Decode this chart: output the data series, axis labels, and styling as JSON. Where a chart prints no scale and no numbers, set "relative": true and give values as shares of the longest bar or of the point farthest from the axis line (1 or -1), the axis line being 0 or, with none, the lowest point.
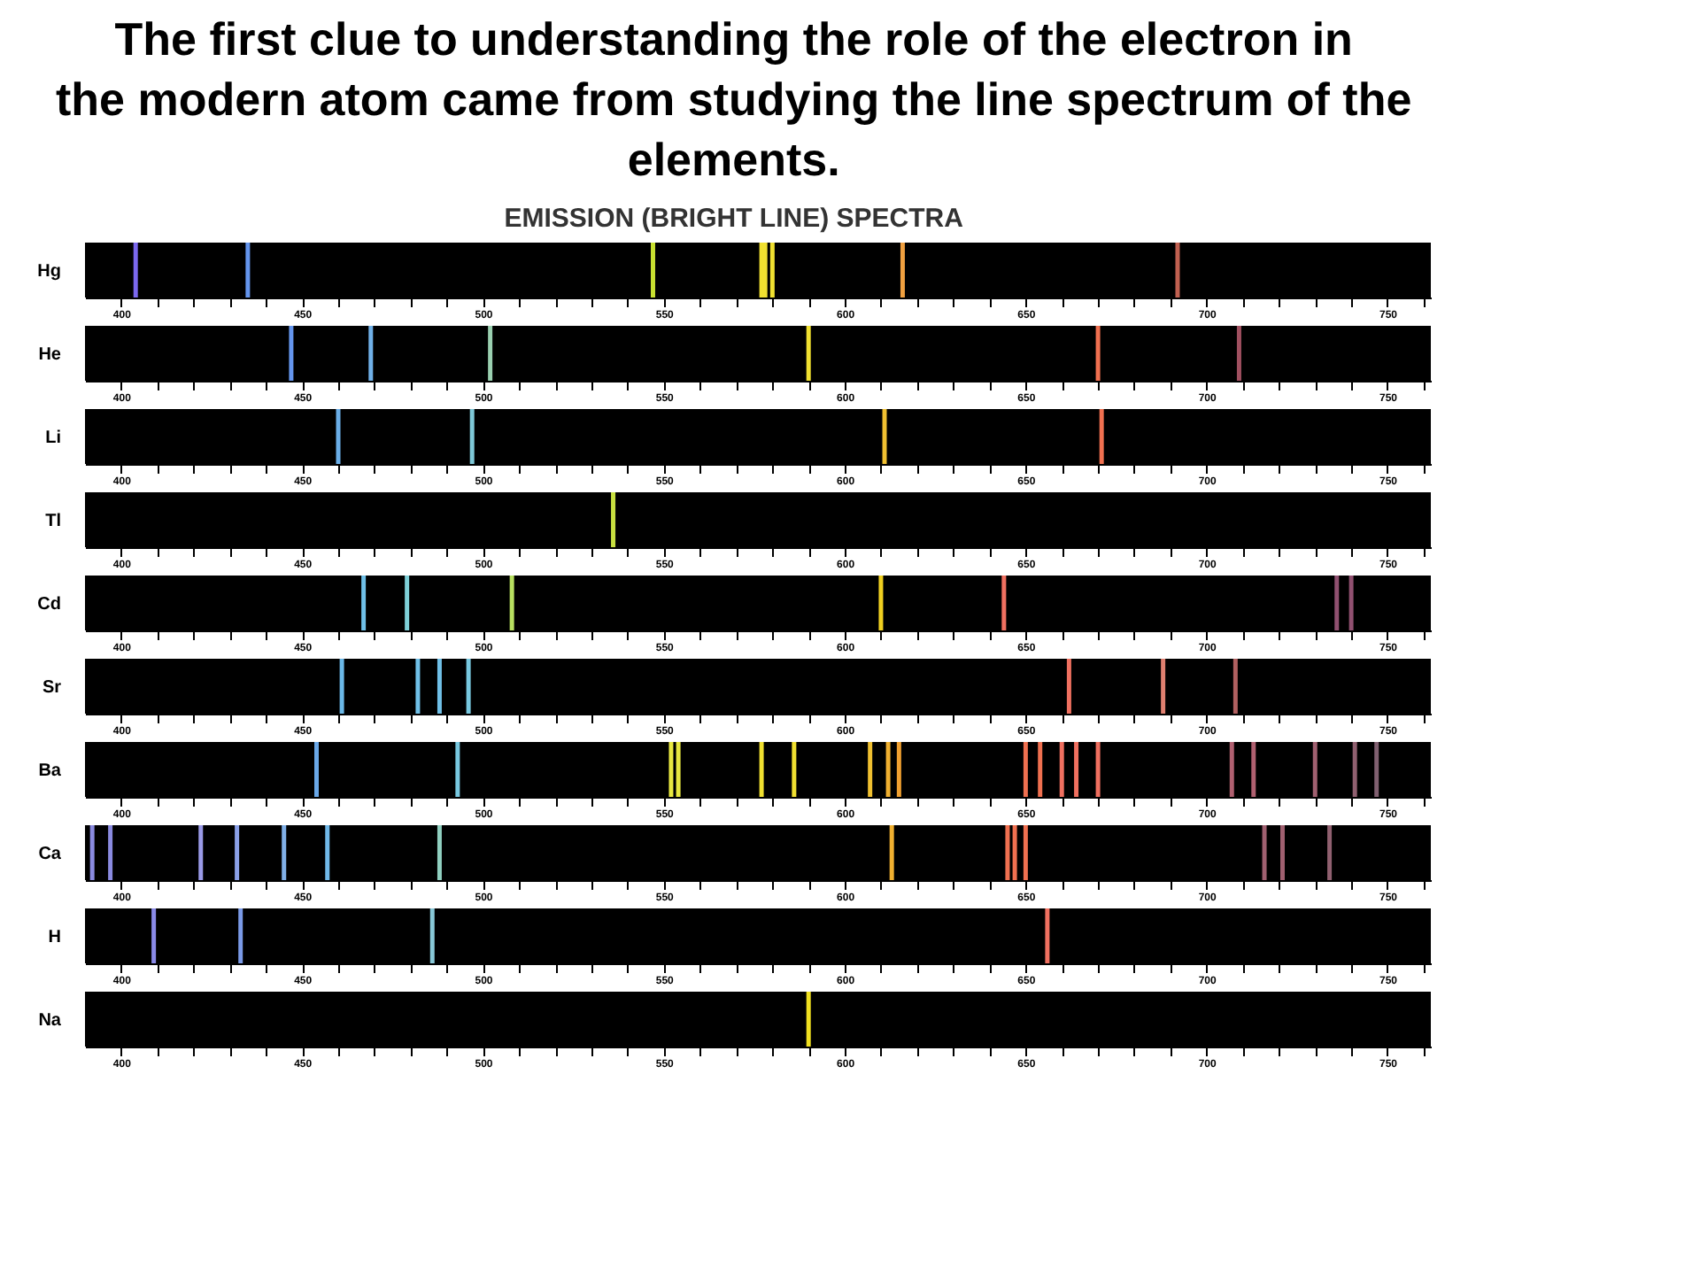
{
  "chart_data": [
    {
      "type": "bar",
      "title": "The first clue to understanding the role of the electron in the modern atom came from studying the line spectrum of the elements.",
      "subtitle": "EMISSION (BRIGHT LINE) SPECTRA",
      "ylabel": "Hg",
      "relative": true,
      "xlim": [
        390,
        762
      ],
      "xticks": [
        400,
        {
          "value": 410,
          "label": null
        },
        {
          "value": 420,
          "label": null
        },
        {
          "value": 430,
          "label": null
        },
        {
          "value": 440,
          "label": null
        },
        450,
        {
          "value": 460,
          "label": null
        },
        {
          "value": 470,
          "label": null
        },
        {
          "value": 480,
          "label": null
        },
        {
          "value": 490,
          "label": null
        },
        500,
        {
          "value": 510,
          "label": null
        },
        {
          "value": 520,
          "label": null
        },
        {
          "value": 530,
          "label": null
        },
        {
          "value": 540,
          "label": null
        },
        550,
        {
          "value": 560,
          "label": null
        },
        {
          "value": 570,
          "label": null
        },
        {
          "value": 580,
          "label": null
        },
        {
          "value": 590,
          "label": null
        },
        600,
        {
          "value": 610,
          "label": null
        },
        {
          "value": 620,
          "label": null
        },
        {
          "value": 630,
          "label": null
        },
        {
          "value": 640,
          "label": null
        },
        650,
        {
          "value": 660,
          "label": null
        },
        {
          "value": 670,
          "label": null
        },
        {
          "value": 680,
          "label": null
        },
        {
          "value": 690,
          "label": null
        },
        700,
        {
          "value": 710,
          "label": null
        },
        {
          "value": 720,
          "label": null
        },
        {
          "value": 730,
          "label": null
        },
        {
          "value": 740,
          "label": null
        },
        750,
        {
          "value": 760,
          "label": null
        }
      ],
      "x": [
        404,
        435,
        547,
        577,
        578,
        580,
        616,
        692
      ],
      "values": [
        1,
        1,
        1,
        1,
        1,
        1,
        1,
        1
      ],
      "colors": [
        "#7b68ee",
        "#6495ed",
        "#c8e030",
        "#f0e030",
        "#f0e030",
        "#f0e030",
        "#f0a040",
        "#c06050"
      ],
      "grid": false
    },
    {
      "type": "bar",
      "ylabel": "He",
      "relative": true,
      "xlim": [
        390,
        762
      ],
      "xticks": [
        400,
        {
          "value": 410,
          "label": null
        },
        {
          "value": 420,
          "label": null
        },
        {
          "value": 430,
          "label": null
        },
        {
          "value": 440,
          "label": null
        },
        450,
        {
          "value": 460,
          "label": null
        },
        {
          "value": 470,
          "label": null
        },
        {
          "value": 480,
          "label": null
        },
        {
          "value": 490,
          "label": null
        },
        500,
        {
          "value": 510,
          "label": null
        },
        {
          "value": 520,
          "label": null
        },
        {
          "value": 530,
          "label": null
        },
        {
          "value": 540,
          "label": null
        },
        550,
        {
          "value": 560,
          "label": null
        },
        {
          "value": 570,
          "label": null
        },
        {
          "value": 580,
          "label": null
        },
        {
          "value": 590,
          "label": null
        },
        600,
        {
          "value": 610,
          "label": null
        },
        {
          "value": 620,
          "label": null
        },
        {
          "value": 630,
          "label": null
        },
        {
          "value": 640,
          "label": null
        },
        650,
        {
          "value": 660,
          "label": null
        },
        {
          "value": 670,
          "label": null
        },
        {
          "value": 680,
          "label": null
        },
        {
          "value": 690,
          "label": null
        },
        700,
        {
          "value": 710,
          "label": null
        },
        {
          "value": 720,
          "label": null
        },
        {
          "value": 730,
          "label": null
        },
        {
          "value": 740,
          "label": null
        },
        750,
        {
          "value": 760,
          "label": null
        }
      ],
      "x": [
        447,
        469,
        502,
        590,
        670,
        709
      ],
      "values": [
        1,
        1,
        1,
        1,
        1,
        1
      ],
      "colors": [
        "#6495ed",
        "#6fb0e8",
        "#9ad0b0",
        "#f0e030",
        "#f07050",
        "#a05060"
      ],
      "grid": false
    },
    {
      "type": "bar",
      "ylabel": "Li",
      "relative": true,
      "xlim": [
        390,
        762
      ],
      "xticks": [
        400,
        {
          "value": 410,
          "label": null
        },
        {
          "value": 420,
          "label": null
        },
        {
          "value": 430,
          "label": null
        },
        {
          "value": 440,
          "label": null
        },
        450,
        {
          "value": 460,
          "label": null
        },
        {
          "value": 470,
          "label": null
        },
        {
          "value": 480,
          "label": null
        },
        {
          "value": 490,
          "label": null
        },
        500,
        {
          "value": 510,
          "label": null
        },
        {
          "value": 520,
          "label": null
        },
        {
          "value": 530,
          "label": null
        },
        {
          "value": 540,
          "label": null
        },
        550,
        {
          "value": 560,
          "label": null
        },
        {
          "value": 570,
          "label": null
        },
        {
          "value": 580,
          "label": null
        },
        {
          "value": 590,
          "label": null
        },
        600,
        {
          "value": 610,
          "label": null
        },
        {
          "value": 620,
          "label": null
        },
        {
          "value": 630,
          "label": null
        },
        {
          "value": 640,
          "label": null
        },
        650,
        {
          "value": 660,
          "label": null
        },
        {
          "value": 670,
          "label": null
        },
        {
          "value": 680,
          "label": null
        },
        {
          "value": 690,
          "label": null
        },
        700,
        {
          "value": 710,
          "label": null
        },
        {
          "value": 720,
          "label": null
        },
        {
          "value": 730,
          "label": null
        },
        {
          "value": 740,
          "label": null
        },
        750,
        {
          "value": 760,
          "label": null
        }
      ],
      "x": [
        460,
        497,
        611,
        671
      ],
      "values": [
        1,
        1,
        1,
        1
      ],
      "colors": [
        "#6aaee8",
        "#7ec8d8",
        "#f0c030",
        "#f07050"
      ],
      "grid": false
    },
    {
      "type": "bar",
      "ylabel": "Tl",
      "relative": true,
      "xlim": [
        390,
        762
      ],
      "xticks": [
        400,
        {
          "value": 410,
          "label": null
        },
        {
          "value": 420,
          "label": null
        },
        {
          "value": 430,
          "label": null
        },
        {
          "value": 440,
          "label": null
        },
        450,
        {
          "value": 460,
          "label": null
        },
        {
          "value": 470,
          "label": null
        },
        {
          "value": 480,
          "label": null
        },
        {
          "value": 490,
          "label": null
        },
        500,
        {
          "value": 510,
          "label": null
        },
        {
          "value": 520,
          "label": null
        },
        {
          "value": 530,
          "label": null
        },
        {
          "value": 540,
          "label": null
        },
        550,
        {
          "value": 560,
          "label": null
        },
        {
          "value": 570,
          "label": null
        },
        {
          "value": 580,
          "label": null
        },
        {
          "value": 590,
          "label": null
        },
        600,
        {
          "value": 610,
          "label": null
        },
        {
          "value": 620,
          "label": null
        },
        {
          "value": 630,
          "label": null
        },
        {
          "value": 640,
          "label": null
        },
        650,
        {
          "value": 660,
          "label": null
        },
        {
          "value": 670,
          "label": null
        },
        {
          "value": 680,
          "label": null
        },
        {
          "value": 690,
          "label": null
        },
        700,
        {
          "value": 710,
          "label": null
        },
        {
          "value": 720,
          "label": null
        },
        {
          "value": 730,
          "label": null
        },
        {
          "value": 740,
          "label": null
        },
        750,
        {
          "value": 760,
          "label": null
        }
      ],
      "x": [
        536
      ],
      "values": [
        1
      ],
      "colors": [
        "#c8e040"
      ],
      "grid": false
    },
    {
      "type": "bar",
      "ylabel": "Cd",
      "relative": true,
      "xlim": [
        390,
        762
      ],
      "xticks": [
        400,
        {
          "value": 410,
          "label": null
        },
        {
          "value": 420,
          "label": null
        },
        {
          "value": 430,
          "label": null
        },
        {
          "value": 440,
          "label": null
        },
        450,
        {
          "value": 460,
          "label": null
        },
        {
          "value": 470,
          "label": null
        },
        {
          "value": 480,
          "label": null
        },
        {
          "value": 490,
          "label": null
        },
        500,
        {
          "value": 510,
          "label": null
        },
        {
          "value": 520,
          "label": null
        },
        {
          "value": 530,
          "label": null
        },
        {
          "value": 540,
          "label": null
        },
        550,
        {
          "value": 560,
          "label": null
        },
        {
          "value": 570,
          "label": null
        },
        {
          "value": 580,
          "label": null
        },
        {
          "value": 590,
          "label": null
        },
        600,
        {
          "value": 610,
          "label": null
        },
        {
          "value": 620,
          "label": null
        },
        {
          "value": 630,
          "label": null
        },
        {
          "value": 640,
          "label": null
        },
        650,
        {
          "value": 660,
          "label": null
        },
        {
          "value": 670,
          "label": null
        },
        {
          "value": 680,
          "label": null
        },
        {
          "value": 690,
          "label": null
        },
        700,
        {
          "value": 710,
          "label": null
        },
        {
          "value": 720,
          "label": null
        },
        {
          "value": 730,
          "label": null
        },
        {
          "value": 740,
          "label": null
        },
        750,
        {
          "value": 760,
          "label": null
        }
      ],
      "x": [
        467,
        479,
        508,
        610,
        644,
        736,
        740
      ],
      "values": [
        1,
        1,
        1,
        1,
        1,
        1,
        1
      ],
      "colors": [
        "#6fc0e8",
        "#7ed0d8",
        "#b8e060",
        "#f0d020",
        "#f07060",
        "#905070",
        "#905070"
      ],
      "grid": false
    },
    {
      "type": "bar",
      "ylabel": "Sr",
      "relative": true,
      "xlim": [
        390,
        762
      ],
      "xticks": [
        400,
        {
          "value": 410,
          "label": null
        },
        {
          "value": 420,
          "label": null
        },
        {
          "value": 430,
          "label": null
        },
        {
          "value": 440,
          "label": null
        },
        450,
        {
          "value": 460,
          "label": null
        },
        {
          "value": 470,
          "label": null
        },
        {
          "value": 480,
          "label": null
        },
        {
          "value": 490,
          "label": null
        },
        500,
        {
          "value": 510,
          "label": null
        },
        {
          "value": 520,
          "label": null
        },
        {
          "value": 530,
          "label": null
        },
        {
          "value": 540,
          "label": null
        },
        550,
        {
          "value": 560,
          "label": null
        },
        {
          "value": 570,
          "label": null
        },
        {
          "value": 580,
          "label": null
        },
        {
          "value": 590,
          "label": null
        },
        600,
        {
          "value": 610,
          "label": null
        },
        {
          "value": 620,
          "label": null
        },
        {
          "value": 630,
          "label": null
        },
        {
          "value": 640,
          "label": null
        },
        650,
        {
          "value": 660,
          "label": null
        },
        {
          "value": 670,
          "label": null
        },
        {
          "value": 680,
          "label": null
        },
        {
          "value": 690,
          "label": null
        },
        700,
        {
          "value": 710,
          "label": null
        },
        {
          "value": 720,
          "label": null
        },
        {
          "value": 730,
          "label": null
        },
        {
          "value": 740,
          "label": null
        },
        750,
        {
          "value": 760,
          "label": null
        }
      ],
      "x": [
        461,
        482,
        488,
        496,
        662,
        688,
        708
      ],
      "values": [
        1,
        1,
        1,
        1,
        1,
        1,
        1
      ],
      "colors": [
        "#6ab8e8",
        "#70c0e8",
        "#70c0e8",
        "#78c8e0",
        "#f07060",
        "#e08070",
        "#b06060"
      ],
      "grid": false
    },
    {
      "type": "bar",
      "ylabel": "Ba",
      "relative": true,
      "xlim": [
        390,
        762
      ],
      "xticks": [
        400,
        {
          "value": 410,
          "label": null
        },
        {
          "value": 420,
          "label": null
        },
        {
          "value": 430,
          "label": null
        },
        {
          "value": 440,
          "label": null
        },
        450,
        {
          "value": 460,
          "label": null
        },
        {
          "value": 470,
          "label": null
        },
        {
          "value": 480,
          "label": null
        },
        {
          "value": 490,
          "label": null
        },
        500,
        {
          "value": 510,
          "label": null
        },
        {
          "value": 520,
          "label": null
        },
        {
          "value": 530,
          "label": null
        },
        {
          "value": 540,
          "label": null
        },
        550,
        {
          "value": 560,
          "label": null
        },
        {
          "value": 570,
          "label": null
        },
        {
          "value": 580,
          "label": null
        },
        {
          "value": 590,
          "label": null
        },
        600,
        {
          "value": 610,
          "label": null
        },
        {
          "value": 620,
          "label": null
        },
        {
          "value": 630,
          "label": null
        },
        {
          "value": 640,
          "label": null
        },
        650,
        {
          "value": 660,
          "label": null
        },
        {
          "value": 670,
          "label": null
        },
        {
          "value": 680,
          "label": null
        },
        {
          "value": 690,
          "label": null
        },
        700,
        {
          "value": 710,
          "label": null
        },
        {
          "value": 720,
          "label": null
        },
        {
          "value": 730,
          "label": null
        },
        {
          "value": 740,
          "label": null
        },
        750,
        {
          "value": 760,
          "label": null
        }
      ],
      "x": [
        454,
        493,
        552,
        554,
        577,
        586,
        607,
        612,
        615,
        650,
        654,
        660,
        664,
        670,
        707,
        713,
        730,
        741,
        747
      ],
      "values": [
        1,
        1,
        1,
        1,
        1,
        1,
        1,
        1,
        1,
        1,
        1,
        1,
        1,
        1,
        1,
        1,
        1,
        1,
        1
      ],
      "colors": [
        "#6aa8e8",
        "#78c8e0",
        "#e8e840",
        "#e8e840",
        "#f0e030",
        "#f0e030",
        "#f0c030",
        "#f0b030",
        "#f0a030",
        "#f07050",
        "#f07050",
        "#f07060",
        "#f07060",
        "#f07060",
        "#b06070",
        "#b06070",
        "#a06070",
        "#906070",
        "#806070"
      ],
      "grid": false
    },
    {
      "type": "bar",
      "ylabel": "Ca",
      "relative": true,
      "xlim": [
        390,
        762
      ],
      "xticks": [
        400,
        {
          "value": 410,
          "label": null
        },
        {
          "value": 420,
          "label": null
        },
        {
          "value": 430,
          "label": null
        },
        {
          "value": 440,
          "label": null
        },
        450,
        {
          "value": 460,
          "label": null
        },
        {
          "value": 470,
          "label": null
        },
        {
          "value": 480,
          "label": null
        },
        {
          "value": 490,
          "label": null
        },
        500,
        {
          "value": 510,
          "label": null
        },
        {
          "value": 520,
          "label": null
        },
        {
          "value": 530,
          "label": null
        },
        {
          "value": 540,
          "label": null
        },
        550,
        {
          "value": 560,
          "label": null
        },
        {
          "value": 570,
          "label": null
        },
        {
          "value": 580,
          "label": null
        },
        {
          "value": 590,
          "label": null
        },
        600,
        {
          "value": 610,
          "label": null
        },
        {
          "value": 620,
          "label": null
        },
        {
          "value": 630,
          "label": null
        },
        {
          "value": 640,
          "label": null
        },
        650,
        {
          "value": 660,
          "label": null
        },
        {
          "value": 670,
          "label": null
        },
        {
          "value": 680,
          "label": null
        },
        {
          "value": 690,
          "label": null
        },
        700,
        {
          "value": 710,
          "label": null
        },
        {
          "value": 720,
          "label": null
        },
        {
          "value": 730,
          "label": null
        },
        {
          "value": 740,
          "label": null
        },
        750,
        {
          "value": 760,
          "label": null
        }
      ],
      "x": [
        392,
        397,
        422,
        432,
        445,
        457,
        488,
        613,
        645,
        647,
        650,
        716,
        721,
        734
      ],
      "values": [
        1,
        1,
        1,
        1,
        1,
        1,
        1,
        1,
        1,
        1,
        1,
        1,
        1,
        1
      ],
      "colors": [
        "#8a8ae0",
        "#8a8ae0",
        "#9a9ae8",
        "#8aa0e8",
        "#80b0e8",
        "#70b8e8",
        "#90d0c0",
        "#f0b030",
        "#f07050",
        "#f07050",
        "#f07050",
        "#a06070",
        "#a06070",
        "#906070"
      ],
      "grid": false
    },
    {
      "type": "bar",
      "ylabel": "H",
      "relative": true,
      "xlim": [
        390,
        762
      ],
      "xticks": [
        400,
        {
          "value": 410,
          "label": null
        },
        {
          "value": 420,
          "label": null
        },
        {
          "value": 430,
          "label": null
        },
        {
          "value": 440,
          "label": null
        },
        450,
        {
          "value": 460,
          "label": null
        },
        {
          "value": 470,
          "label": null
        },
        {
          "value": 480,
          "label": null
        },
        {
          "value": 490,
          "label": null
        },
        500,
        {
          "value": 510,
          "label": null
        },
        {
          "value": 520,
          "label": null
        },
        {
          "value": 530,
          "label": null
        },
        {
          "value": 540,
          "label": null
        },
        550,
        {
          "value": 560,
          "label": null
        },
        {
          "value": 570,
          "label": null
        },
        {
          "value": 580,
          "label": null
        },
        {
          "value": 590,
          "label": null
        },
        600,
        {
          "value": 610,
          "label": null
        },
        {
          "value": 620,
          "label": null
        },
        {
          "value": 630,
          "label": null
        },
        {
          "value": 640,
          "label": null
        },
        650,
        {
          "value": 660,
          "label": null
        },
        {
          "value": 670,
          "label": null
        },
        {
          "value": 680,
          "label": null
        },
        {
          "value": 690,
          "label": null
        },
        700,
        {
          "value": 710,
          "label": null
        },
        {
          "value": 720,
          "label": null
        },
        {
          "value": 730,
          "label": null
        },
        {
          "value": 740,
          "label": null
        },
        750,
        {
          "value": 760,
          "label": null
        }
      ],
      "x": [
        409,
        433,
        486,
        656
      ],
      "values": [
        1,
        1,
        1,
        1
      ],
      "colors": [
        "#8a8ae8",
        "#7a9ae8",
        "#88c8d8",
        "#f07060"
      ],
      "grid": false
    },
    {
      "type": "bar",
      "ylabel": "Na",
      "relative": true,
      "xlim": [
        390,
        762
      ],
      "xticks": [
        400,
        {
          "value": 410,
          "label": null
        },
        {
          "value": 420,
          "label": null
        },
        {
          "value": 430,
          "label": null
        },
        {
          "value": 440,
          "label": null
        },
        450,
        {
          "value": 460,
          "label": null
        },
        {
          "value": 470,
          "label": null
        },
        {
          "value": 480,
          "label": null
        },
        {
          "value": 490,
          "label": null
        },
        500,
        {
          "value": 510,
          "label": null
        },
        {
          "value": 520,
          "label": null
        },
        {
          "value": 530,
          "label": null
        },
        {
          "value": 540,
          "label": null
        },
        550,
        {
          "value": 560,
          "label": null
        },
        {
          "value": 570,
          "label": null
        },
        {
          "value": 580,
          "label": null
        },
        {
          "value": 590,
          "label": null
        },
        600,
        {
          "value": 610,
          "label": null
        },
        {
          "value": 620,
          "label": null
        },
        {
          "value": 630,
          "label": null
        },
        {
          "value": 640,
          "label": null
        },
        650,
        {
          "value": 660,
          "label": null
        },
        {
          "value": 670,
          "label": null
        },
        {
          "value": 680,
          "label": null
        },
        {
          "value": 690,
          "label": null
        },
        700,
        {
          "value": 710,
          "label": null
        },
        {
          "value": 720,
          "label": null
        },
        {
          "value": 730,
          "label": null
        },
        {
          "value": 740,
          "label": null
        },
        750,
        {
          "value": 760,
          "label": null
        }
      ],
      "x": [
        590
      ],
      "values": [
        1
      ],
      "colors": [
        "#f0e020"
      ],
      "grid": false
    }
  ]
}
